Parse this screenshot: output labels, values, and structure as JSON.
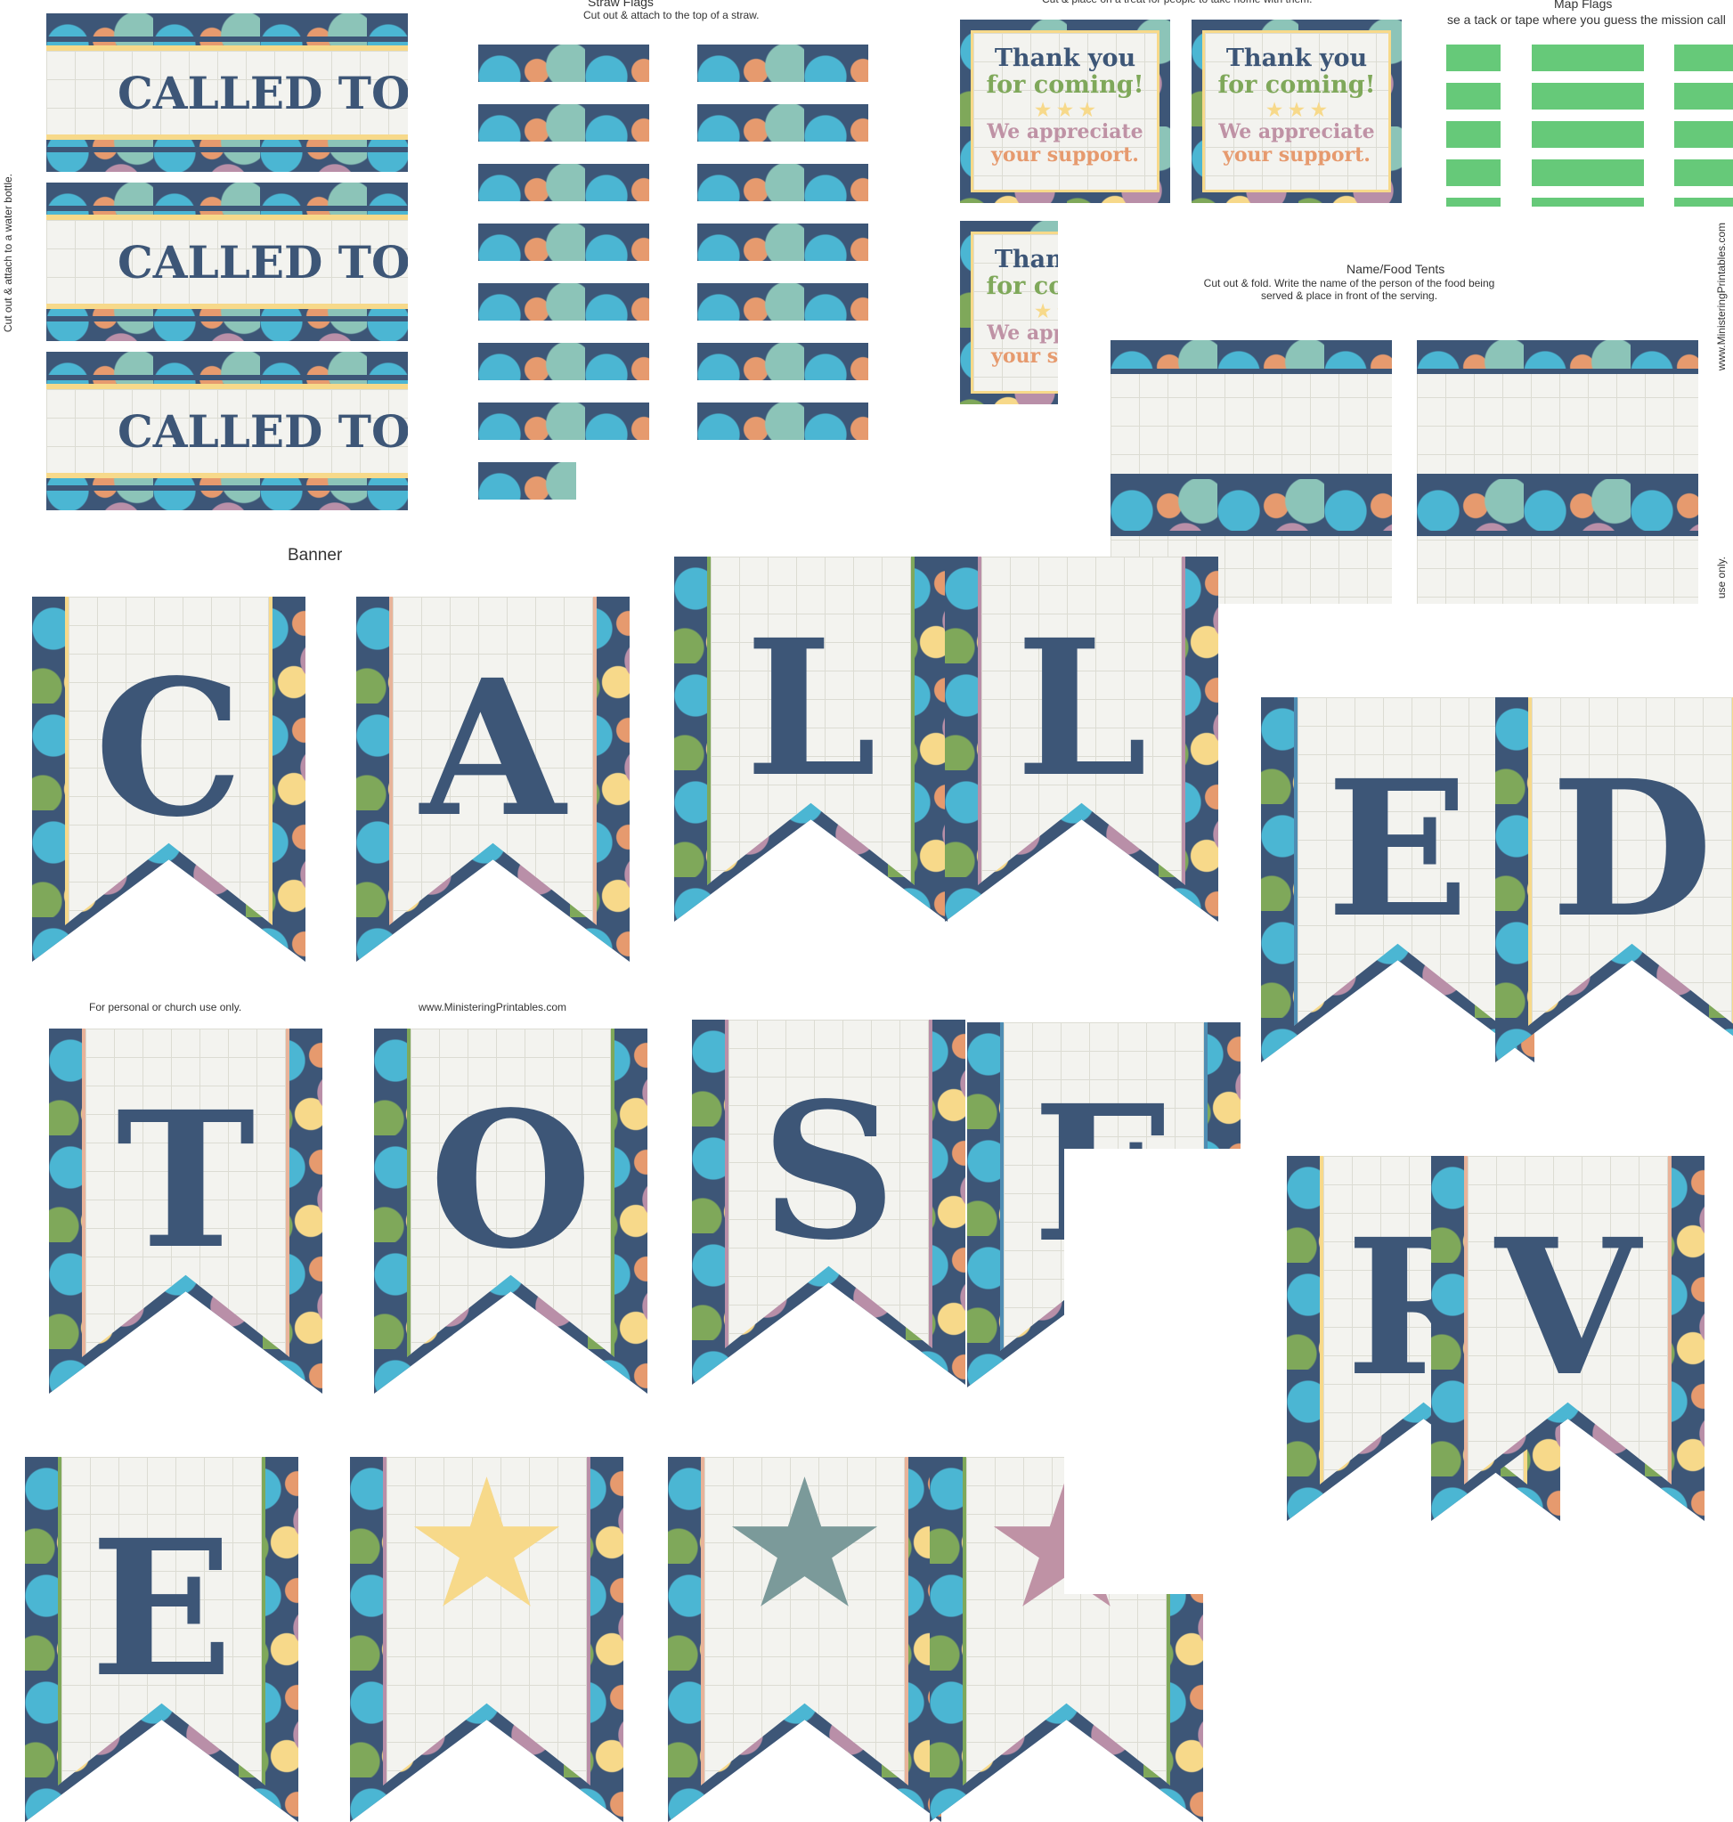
{
  "water_bottle": {
    "side_text": "Cut out & attach to a water bottle.",
    "label": "CALLED TO S",
    "count": 3
  },
  "straw_flags": {
    "title": "Straw Flags",
    "subtitle": "Cut out & attach to the top of a straw."
  },
  "treat_cards": {
    "subtitle": "Cut & place on a treat for people to take home with them.",
    "line1": "Thank you",
    "line2": "for coming!",
    "stars": "★ ★ ★",
    "line3": "We appreciate",
    "line4": "your support."
  },
  "map_flags": {
    "title": "Map Flags",
    "subtitle": "se a tack or tape where you guess the mission call"
  },
  "name_tents": {
    "title": "Name/Food Tents",
    "subtitle": "Cut out & fold. Write the name of the person of the food being served & place in front of the serving."
  },
  "side_url": "www.MinisteringPrintables.com",
  "side_use": "use only.",
  "banner": {
    "title": "Banner",
    "footer_left": "For personal or church use only.",
    "footer_right": "www.MinisteringPrintables.com",
    "letters": [
      "C",
      "A",
      "L",
      "L",
      "E",
      "D",
      "T",
      "O",
      "S",
      "E",
      "R",
      "V",
      "E",
      "star-yellow",
      "star-gray",
      "star-pink"
    ]
  },
  "colors": {
    "navy": "#3d5677",
    "yellow": "#f7d98a",
    "blue": "#4bb6d3",
    "mauve": "#b98fa8",
    "green": "#66c979",
    "sage": "#7fa85a",
    "teal": "#7b9a9a",
    "pink": "#bf92a5"
  }
}
